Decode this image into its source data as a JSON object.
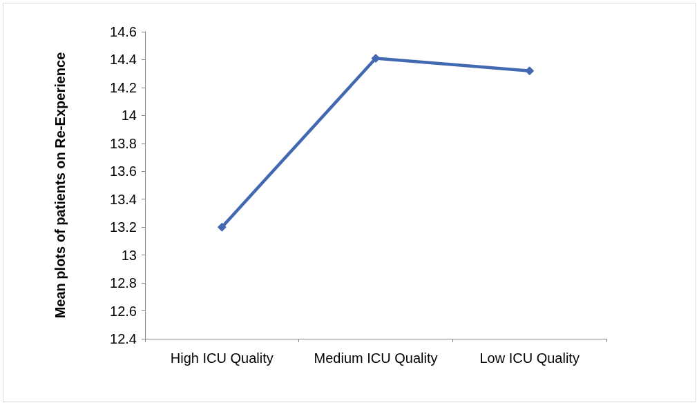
{
  "chart_data": {
    "type": "line",
    "ylabel": "Mean plots of patients on Re-Experience",
    "categories": [
      "High ICU Quality",
      "Medium ICU Quality",
      "Low ICU Quality"
    ],
    "series": [
      {
        "color": "#4168b0",
        "values": [
          13.2,
          14.41,
          14.32
        ]
      }
    ],
    "ylim": [
      12.4,
      14.6
    ],
    "yticks": [
      12.4,
      12.6,
      12.8,
      13,
      13.2,
      13.4,
      13.6,
      13.8,
      14,
      14.2,
      14.4,
      14.6
    ],
    "marker": "diamond",
    "line_style": "solid"
  }
}
